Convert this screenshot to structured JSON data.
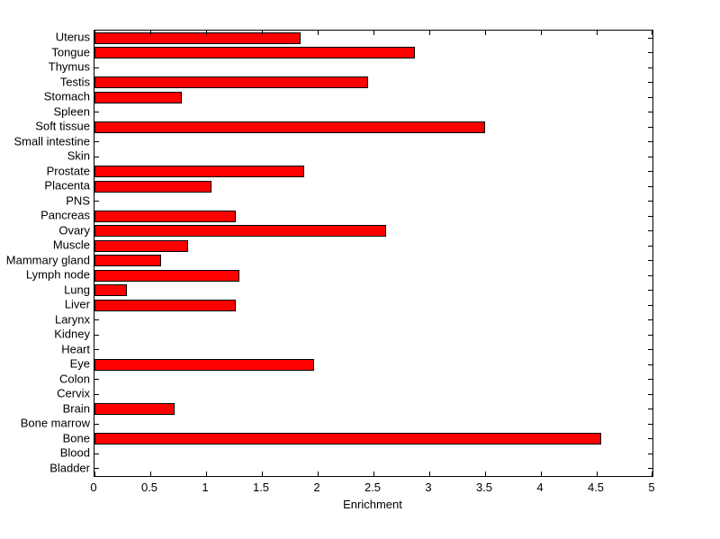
{
  "figure": {
    "background": "#ffffff"
  },
  "chart_data": {
    "type": "bar",
    "orientation": "horizontal",
    "title": "",
    "xlabel": "Enrichment",
    "ylabel": "",
    "xlim": [
      0,
      5
    ],
    "xticks": [
      0,
      0.5,
      1,
      1.5,
      2,
      2.5,
      3,
      3.5,
      4,
      4.5,
      5
    ],
    "xtick_labels": [
      "0",
      "0.5",
      "1",
      "1.5",
      "2",
      "2.5",
      "3",
      "3.5",
      "4",
      "4.5",
      "5"
    ],
    "grid": false,
    "legend": null,
    "bar_color": "#ff0000",
    "bar_edge_color": "#000000",
    "categories": [
      "Uterus",
      "Tongue",
      "Thymus",
      "Testis",
      "Stomach",
      "Spleen",
      "Soft tissue",
      "Small intestine",
      "Skin",
      "Prostate",
      "Placenta",
      "PNS",
      "Pancreas",
      "Ovary",
      "Muscle",
      "Mammary gland",
      "Lymph node",
      "Lung",
      "Liver",
      "Larynx",
      "Kidney",
      "Heart",
      "Eye",
      "Colon",
      "Cervix",
      "Brain",
      "Bone marrow",
      "Bone",
      "Blood",
      "Bladder"
    ],
    "values": [
      1.85,
      2.87,
      0,
      2.45,
      0.78,
      0,
      3.5,
      0,
      0,
      1.88,
      1.05,
      0,
      1.27,
      2.61,
      0.84,
      0.6,
      1.3,
      0.29,
      1.27,
      0,
      0,
      0,
      1.97,
      0,
      0,
      0.72,
      0,
      4.54,
      0,
      0
    ]
  }
}
